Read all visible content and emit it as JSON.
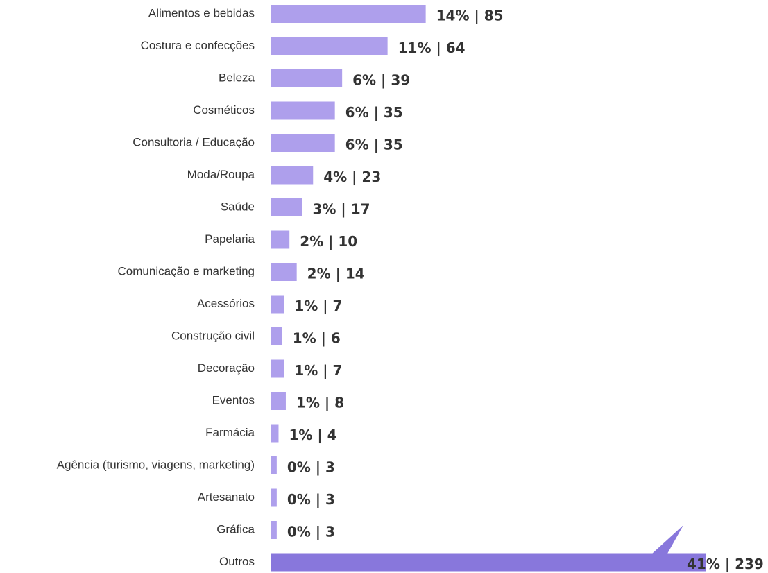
{
  "chart_data": {
    "type": "hbar",
    "categories": [
      "Alimentos e bebidas",
      "Costura e confecções",
      "Beleza",
      "Cosméticos",
      "Consultoria / Educação",
      "Moda/Roupa",
      "Saúde",
      "Papelaria",
      "Comunicação e marketing",
      "Acessórios",
      "Construção civil",
      "Decoração",
      "Eventos",
      "Farmácia",
      "Agência (turismo, viagens, marketing)",
      "Artesanato",
      "Gráfica",
      "Outros"
    ],
    "values": [
      85,
      64,
      39,
      35,
      35,
      23,
      17,
      10,
      14,
      7,
      6,
      7,
      8,
      4,
      3,
      3,
      3,
      239
    ],
    "value_labels": [
      "14% | 85",
      "11% | 64",
      "6% | 39",
      "6% | 35",
      "6% | 35",
      "4% | 23",
      "3% | 17",
      "2% | 10",
      "2% | 14",
      "1% | 7",
      "1% | 6",
      "1% | 7",
      "1% | 8",
      "1% | 4",
      "0% | 3",
      "0% | 3",
      "0% | 3",
      "41% | 239"
    ],
    "colors": [
      "#ae9fec",
      "#ae9fec",
      "#ae9fec",
      "#ae9fec",
      "#ae9fec",
      "#ae9fec",
      "#ae9fec",
      "#ae9fec",
      "#ae9fec",
      "#ae9fec",
      "#ae9fec",
      "#ae9fec",
      "#ae9fec",
      "#ae9fec",
      "#ae9fec",
      "#ae9fec",
      "#ae9fec",
      "#8877dc"
    ]
  }
}
